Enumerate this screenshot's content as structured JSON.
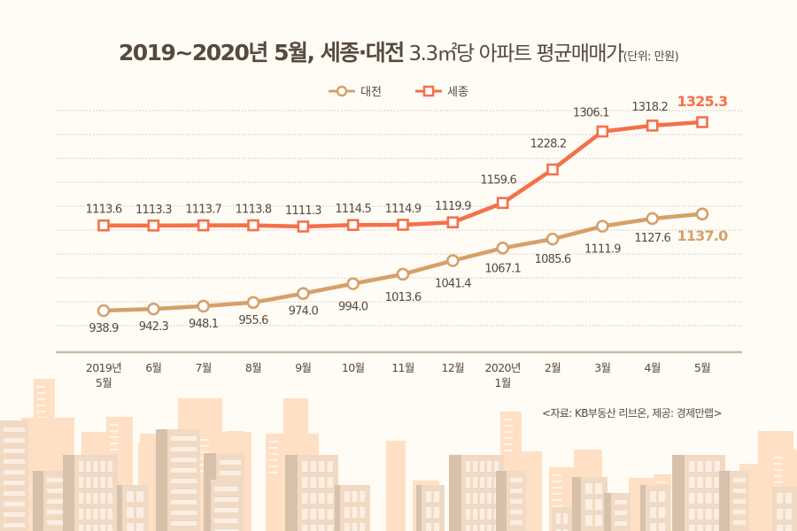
{
  "title": {
    "bold": "2019~2020년 5월, 세종·대전",
    "light": " 3.3㎡당 아파트 평균매매가",
    "unit": "(단위: 만원)"
  },
  "source": "<자료: KB부동산 리브온, 제공: 경제만랩>",
  "colors": {
    "sejong": "#f5704a",
    "daejeon": "#d6a06a",
    "text": "#574a3c",
    "grid": "#cfc6ba",
    "axis": "#cbbba6",
    "building_light": "#ffe0c4",
    "building_mid": "#f1dac4",
    "building_dark": "#d7c1ab",
    "window": "#fbefe4"
  },
  "chart_data": {
    "type": "line",
    "title": "2019~2020년 5월, 세종·대전 3.3㎡당 아파트 평균매매가",
    "unit": "만원",
    "categories": [
      [
        "2019년",
        "5월"
      ],
      [
        "6월"
      ],
      [
        "7월"
      ],
      [
        "8월"
      ],
      [
        "9월"
      ],
      [
        "10월"
      ],
      [
        "11월"
      ],
      [
        "12월"
      ],
      [
        "2020년",
        "1월"
      ],
      [
        "2월"
      ],
      [
        "3월"
      ],
      [
        "4월"
      ],
      [
        "5월"
      ]
    ],
    "series": [
      {
        "name": "대전",
        "marker": "circle",
        "values": [
          938.9,
          942.3,
          948.1,
          955.6,
          974.0,
          994.0,
          1013.6,
          1041.4,
          1067.1,
          1085.6,
          1111.9,
          1127.6,
          1137.0
        ],
        "labels": [
          "938.9",
          "942.3",
          "948.1",
          "955.6",
          "974.0",
          "994.0",
          "1013.6",
          "1041.4",
          "1067.1",
          "1085.6",
          "1111.9",
          "1127.6",
          "1137.0"
        ]
      },
      {
        "name": "세종",
        "marker": "square",
        "values": [
          1113.6,
          1113.3,
          1113.7,
          1113.8,
          1111.3,
          1114.5,
          1114.9,
          1119.9,
          1159.6,
          1228.2,
          1306.1,
          1318.2,
          1325.3
        ],
        "labels": [
          "1113.6",
          "1113.3",
          "1113.7",
          "1113.8",
          "1111.3",
          "1114.5",
          "1114.9",
          "1119.9",
          "1159.6",
          "1228.2",
          "1306.1",
          "1318.2",
          "1325.3"
        ]
      }
    ],
    "ylim": [
      860,
      1350
    ],
    "grid": true,
    "legend_position": "top-center"
  }
}
